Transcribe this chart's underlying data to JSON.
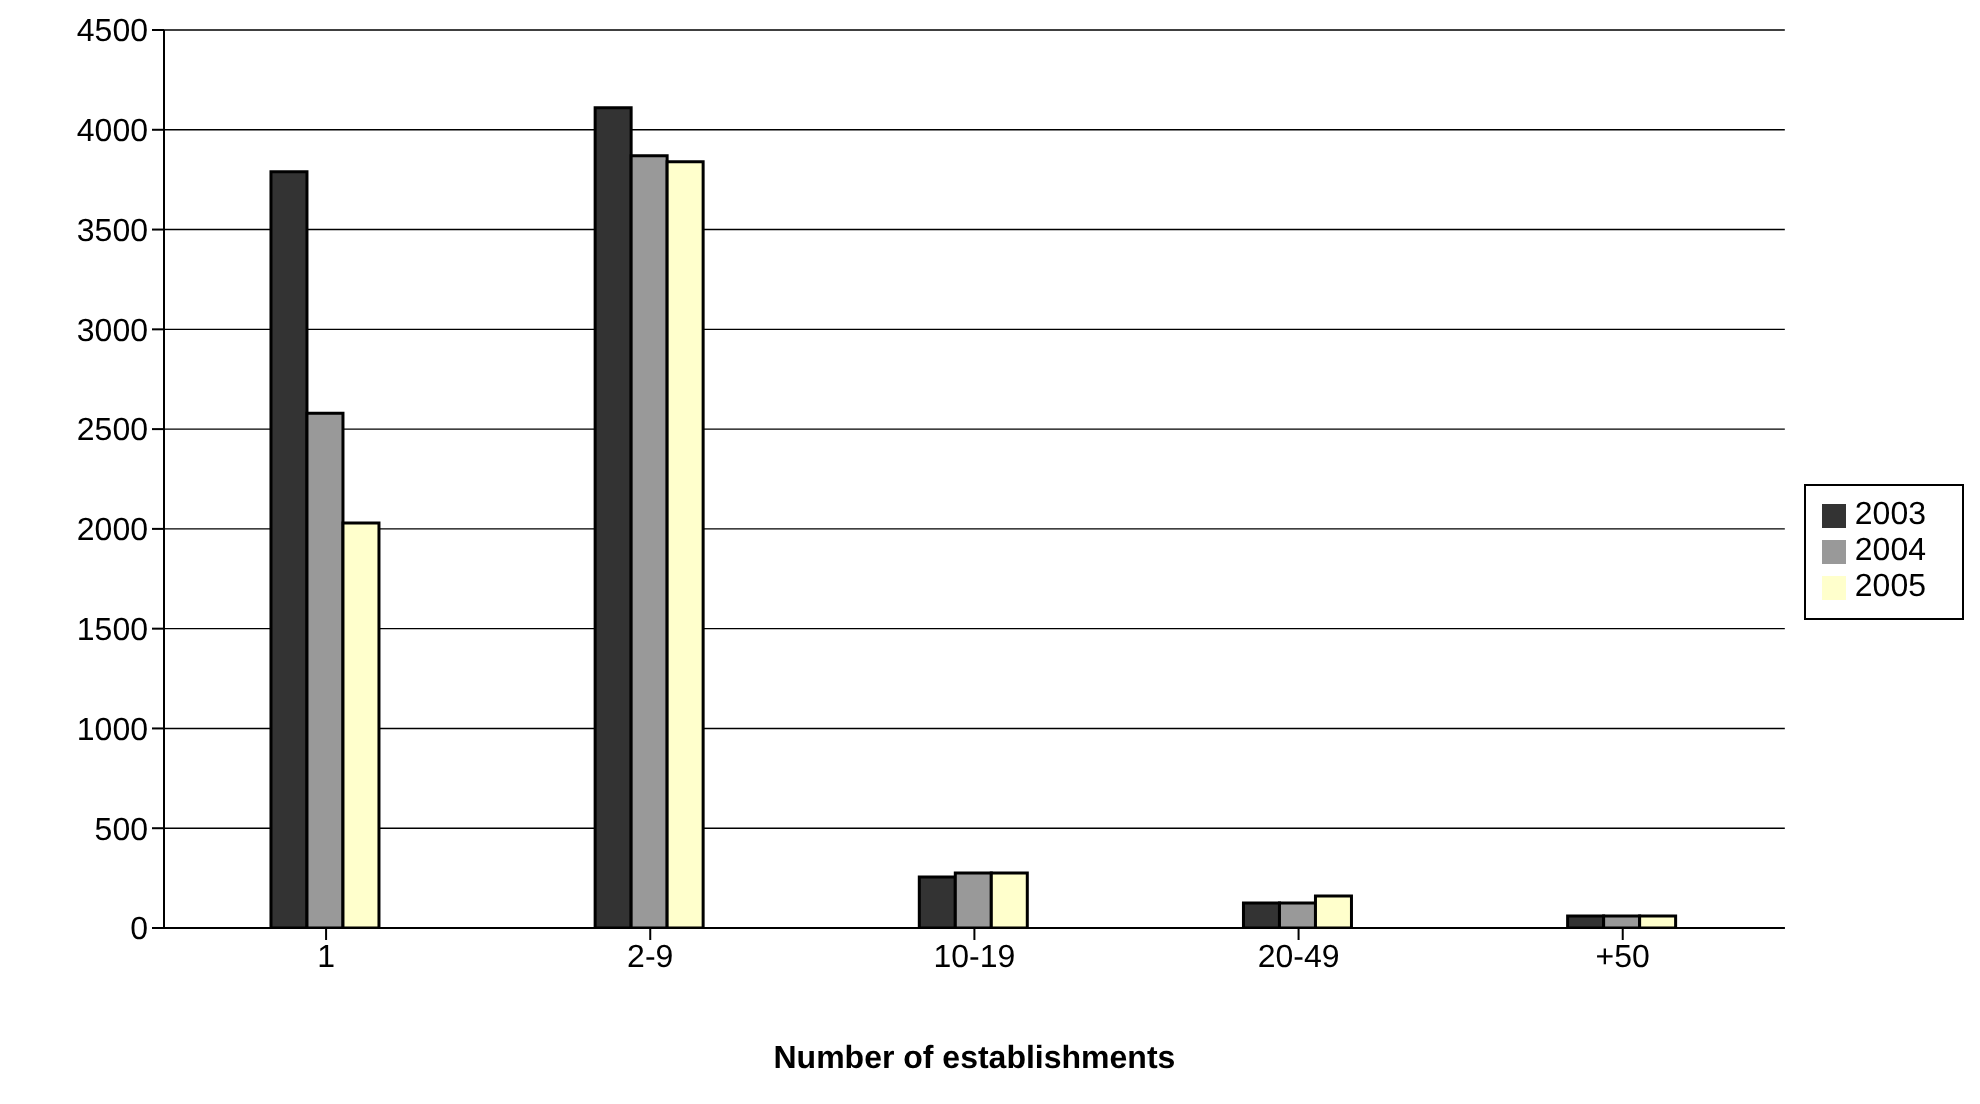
{
  "chart_data": {
    "type": "bar",
    "xlabel": "Number of establishments",
    "categories": [
      "1",
      "2-9",
      "10-19",
      "20-49",
      "+50"
    ],
    "series": [
      {
        "name": "2003",
        "color": "#333333",
        "values": [
          3790,
          4110,
          255,
          125,
          60
        ]
      },
      {
        "name": "2004",
        "color": "#999999",
        "values": [
          2580,
          3870,
          275,
          125,
          60
        ]
      },
      {
        "name": "2005",
        "color": "#ffffcc",
        "values": [
          2030,
          3840,
          275,
          160,
          60
        ]
      }
    ],
    "ylim": [
      0,
      4500
    ],
    "yticks": [
      0,
      500,
      1000,
      1500,
      2000,
      2500,
      3000,
      3500,
      4000,
      4500
    ],
    "grid": "y",
    "legend": "right"
  }
}
